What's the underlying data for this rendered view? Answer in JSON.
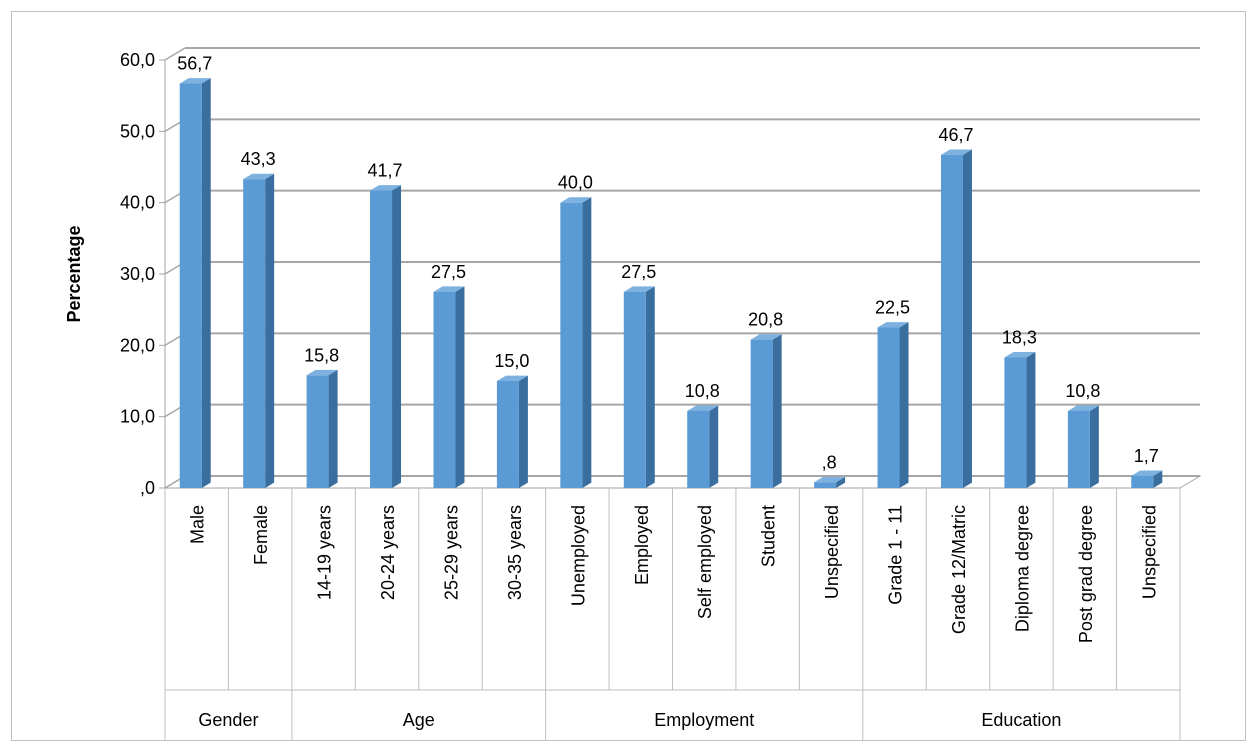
{
  "chart_data": {
    "type": "bar",
    "ylabel": "Percentage",
    "ylim": [
      0,
      60
    ],
    "yticks": [
      ",0",
      "10,0",
      "20,0",
      "30,0",
      "40,0",
      "50,0",
      "60,0"
    ],
    "grid": true,
    "legend": "none",
    "bar_color": "#5b9bd5",
    "categories": [
      "Male",
      "Female",
      "14-19 years",
      "20-24 years",
      "25-29 years",
      "30-35 years",
      "Unemployed",
      "Employed",
      "Self employed",
      "Student",
      "Unspecified",
      "Grade 1 - 11",
      "Grade 12/Matric",
      "Diploma degree",
      "Post grad degree",
      "Unspecified"
    ],
    "values": [
      56.7,
      43.3,
      15.8,
      41.7,
      27.5,
      15.0,
      40.0,
      27.5,
      10.8,
      20.8,
      0.8,
      22.5,
      46.7,
      18.3,
      10.8,
      1.7
    ],
    "value_labels": [
      "56,7",
      "43,3",
      "15,8",
      "41,7",
      "27,5",
      "15,0",
      "40,0",
      "27,5",
      "10,8",
      "20,8",
      ",8",
      "22,5",
      "46,7",
      "18,3",
      "10,8",
      "1,7"
    ],
    "groups": [
      {
        "label": "Gender",
        "count": 2
      },
      {
        "label": "Age",
        "count": 4
      },
      {
        "label": "Employment",
        "count": 5
      },
      {
        "label": "Education",
        "count": 5
      }
    ]
  }
}
